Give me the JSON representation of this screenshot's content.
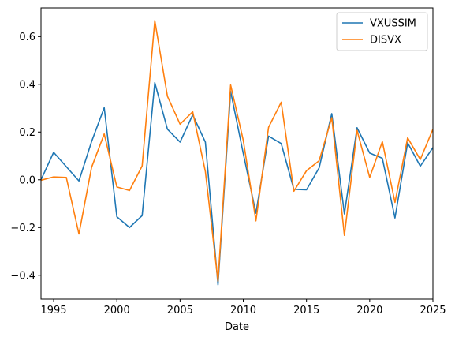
{
  "chart_data": {
    "type": "line",
    "xlabel": "Date",
    "ylabel": "",
    "title": "",
    "xlim": [
      1994,
      2025
    ],
    "ylim": [
      -0.5,
      0.72
    ],
    "xticks": [
      1995,
      2000,
      2005,
      2010,
      2015,
      2020,
      2025
    ],
    "yticks": [
      -0.4,
      -0.2,
      0.0,
      0.2,
      0.4,
      0.6
    ],
    "ytick_labels": [
      "−0.4",
      "−0.2",
      "0.0",
      "0.2",
      "0.4",
      "0.6"
    ],
    "grid": false,
    "legend_position": "top-right",
    "x": [
      1994,
      1995,
      1996,
      1997,
      1998,
      1999,
      2000,
      2001,
      2002,
      2003,
      2004,
      2005,
      2006,
      2007,
      2008,
      2009,
      2010,
      2011,
      2012,
      2013,
      2014,
      2015,
      2016,
      2017,
      2018,
      2019,
      2020,
      2021,
      2022,
      2023,
      2024,
      2025
    ],
    "series": [
      {
        "name": "VXUSSIM",
        "color": "#1f77b4",
        "values": [
          0.0,
          0.115,
          0.055,
          -0.005,
          0.16,
          0.302,
          -0.155,
          -0.2,
          -0.15,
          0.407,
          0.212,
          0.158,
          0.272,
          0.158,
          -0.44,
          0.37,
          0.11,
          -0.14,
          0.183,
          0.152,
          -0.04,
          -0.042,
          0.05,
          0.277,
          -0.143,
          0.218,
          0.112,
          0.09,
          -0.16,
          0.155,
          0.057,
          0.135
        ]
      },
      {
        "name": "DISVX",
        "color": "#ff7f0e",
        "values": [
          -0.002,
          0.012,
          0.01,
          -0.227,
          0.052,
          0.192,
          -0.03,
          -0.045,
          0.058,
          0.667,
          0.35,
          0.233,
          0.285,
          0.035,
          -0.425,
          0.397,
          0.165,
          -0.172,
          0.22,
          0.325,
          -0.048,
          0.038,
          0.08,
          0.26,
          -0.233,
          0.207,
          0.01,
          0.16,
          -0.095,
          0.176,
          0.085,
          0.212
        ]
      }
    ]
  }
}
